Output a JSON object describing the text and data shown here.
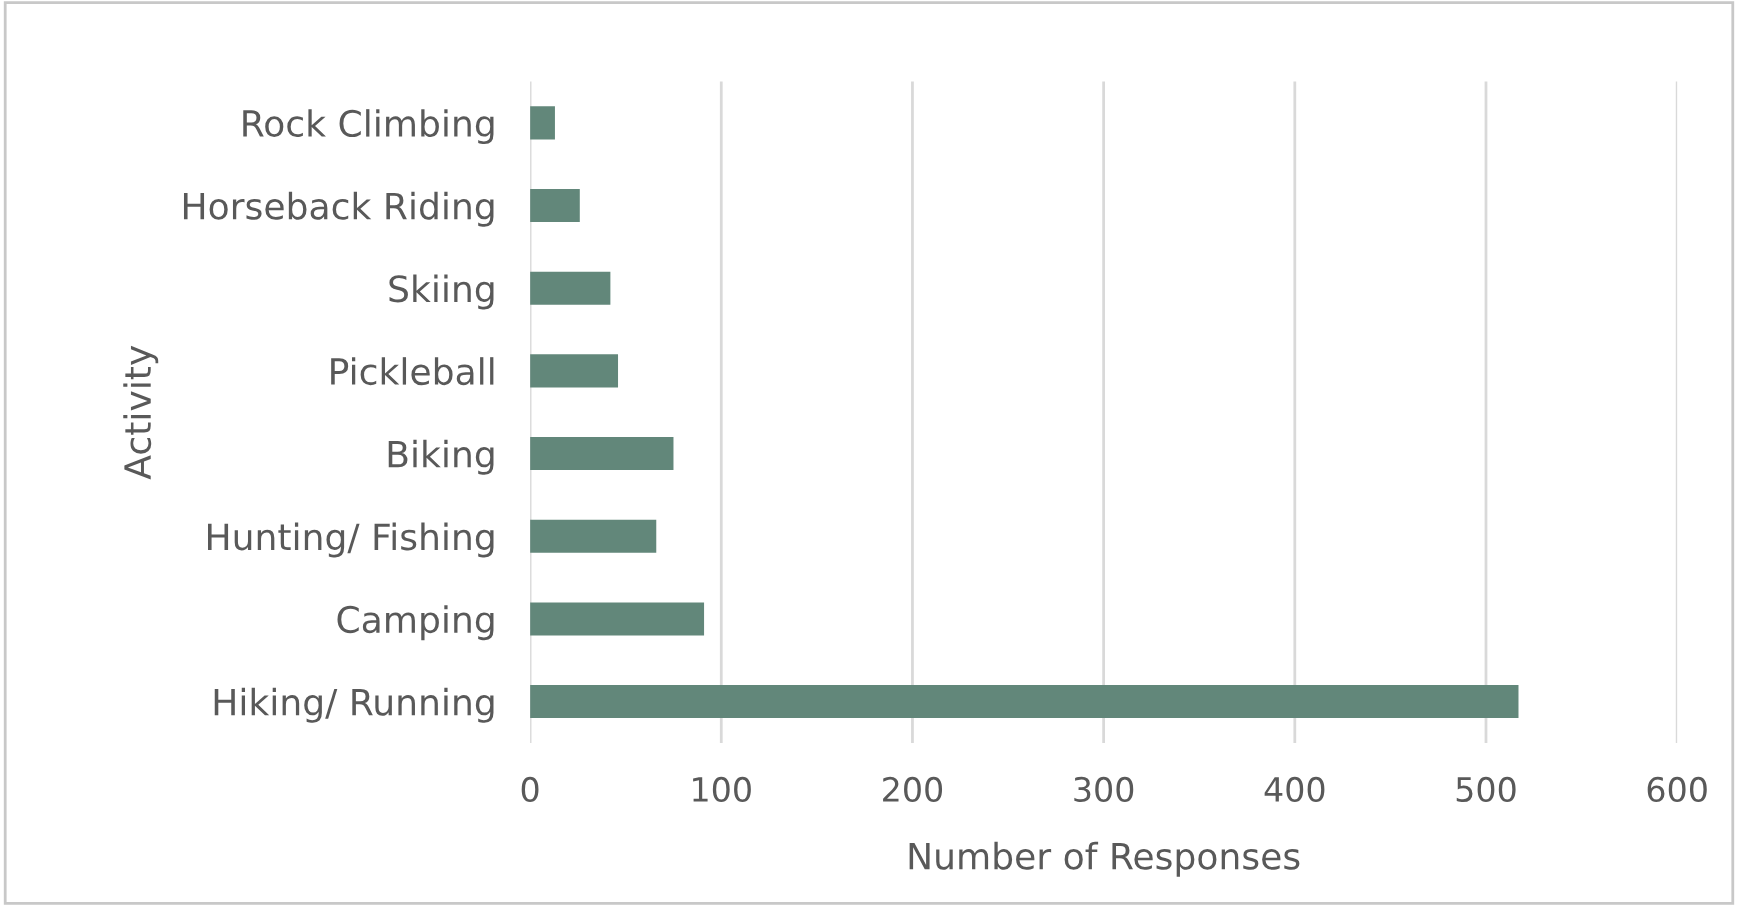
{
  "chart_data": {
    "type": "bar",
    "orientation": "horizontal",
    "xlabel": "Number of Responses",
    "ylabel": "Activity",
    "categories": [
      "Rock Climbing",
      "Horseback Riding",
      "Skiing",
      "Pickleball",
      "Biking",
      "Hunting/ Fishing",
      "Camping",
      "Hiking/ Running"
    ],
    "values": [
      13,
      26,
      42,
      46,
      75,
      66,
      91,
      517
    ],
    "color": "#62877a",
    "xlim": [
      0,
      600
    ],
    "xticks": [
      0,
      100,
      200,
      300,
      400,
      500,
      600
    ],
    "grid": "x",
    "legend": false
  }
}
